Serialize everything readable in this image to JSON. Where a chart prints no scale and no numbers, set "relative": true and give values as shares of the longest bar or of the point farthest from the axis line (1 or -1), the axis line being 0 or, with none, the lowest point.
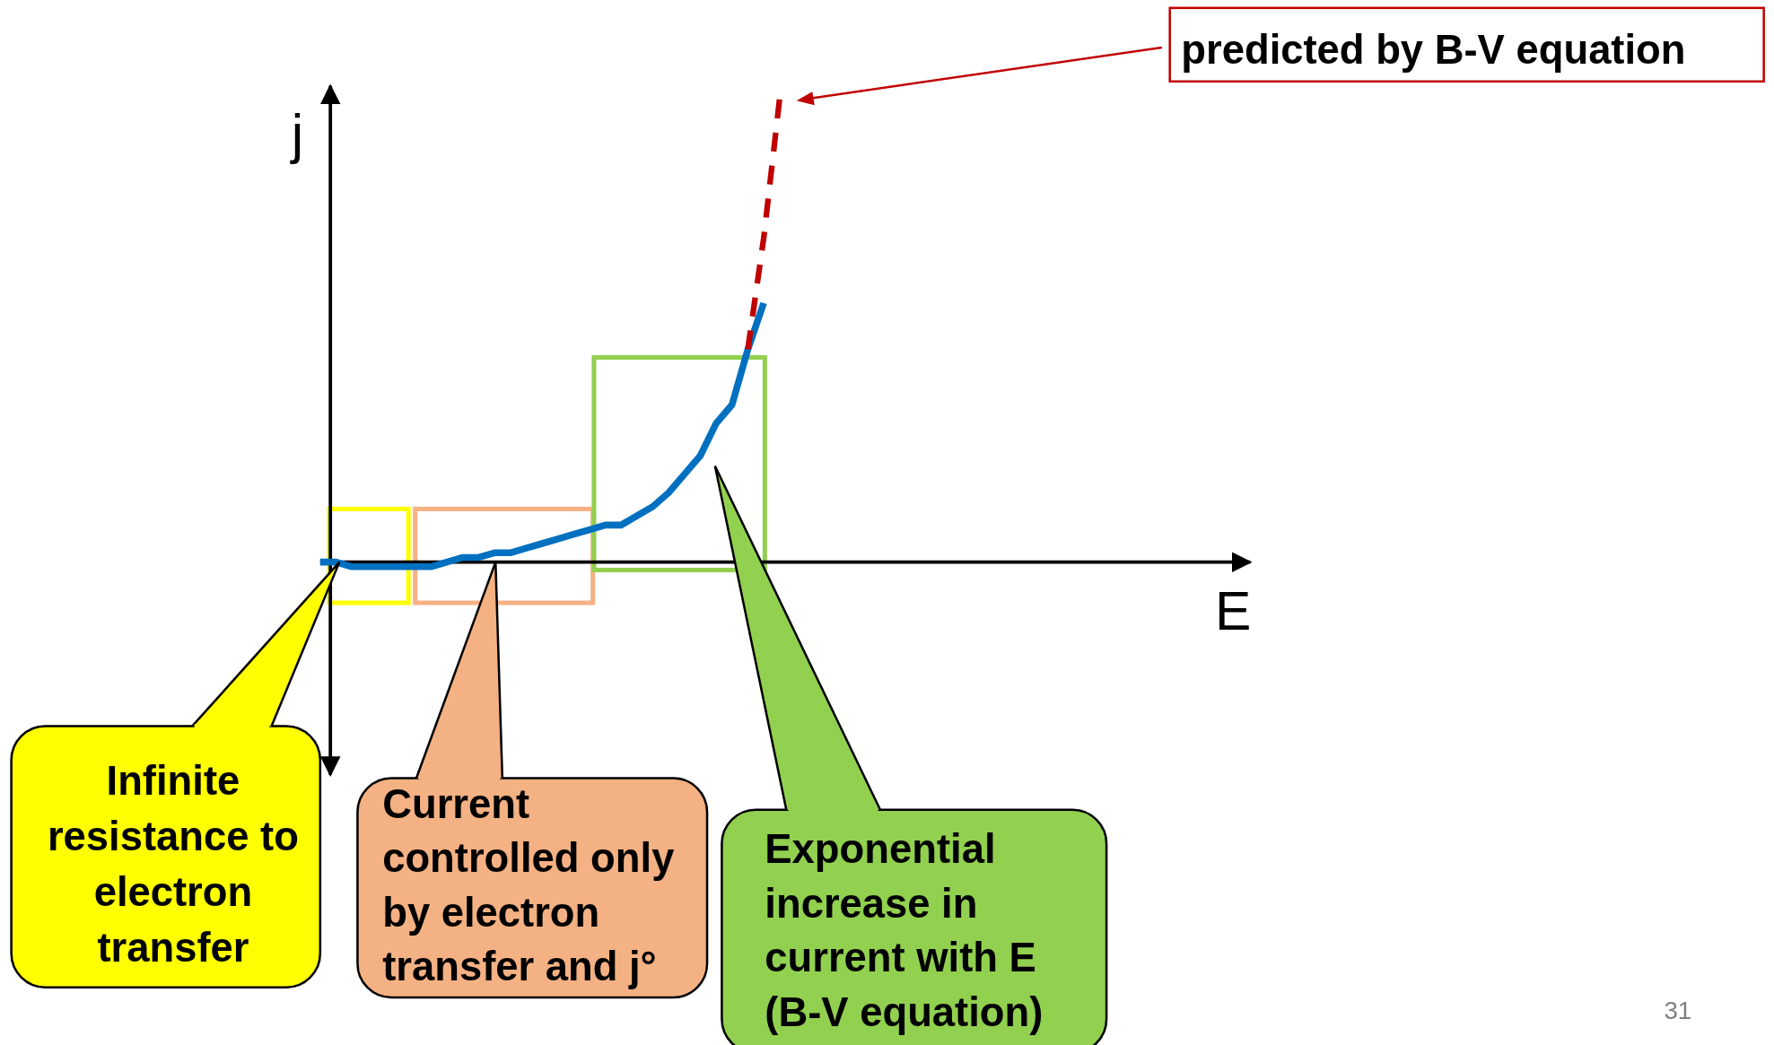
{
  "chart_data": {
    "type": "line",
    "relative": true,
    "xlabel": "E",
    "ylabel": "j",
    "categories": [
      null,
      null,
      null,
      null,
      null,
      null,
      null,
      null,
      null,
      null,
      null,
      null,
      null,
      null,
      null,
      null,
      null,
      null,
      null,
      null,
      null,
      null,
      null,
      null,
      null,
      null,
      null,
      null,
      null,
      null,
      null,
      null,
      null,
      null,
      null,
      null,
      null,
      null,
      null,
      null,
      null,
      null,
      null,
      null,
      null,
      null,
      null,
      null,
      null,
      null,
      null,
      null,
      null,
      null,
      null,
      null,
      null,
      null,
      null
    ],
    "series": [
      {
        "color": "#0070c0",
        "line_style": "solid",
        "values": [
          0.0,
          0.0,
          -0.01,
          -0.01,
          -0.01,
          -0.01,
          -0.01,
          -0.01,
          0,
          0.01,
          0.01,
          0.02,
          0.02,
          0.03,
          0.04,
          0.05,
          0.06,
          0.07,
          0.08,
          0.08,
          0.1,
          0.12,
          0.15,
          0.19,
          0.23,
          0.3,
          0.34,
          0.46,
          0.56,
          null,
          null,
          null,
          null,
          null,
          null,
          null,
          null,
          null,
          null,
          null,
          null,
          null,
          null,
          null,
          null,
          null,
          null,
          null,
          null,
          null,
          null,
          null,
          null,
          null,
          null,
          null,
          null,
          null,
          null
        ]
      },
      {
        "color": "#c00000",
        "line_style": "dashed",
        "values": [
          null,
          null,
          null,
          null,
          null,
          null,
          null,
          null,
          null,
          null,
          null,
          null,
          null,
          null,
          null,
          null,
          null,
          null,
          null,
          null,
          null,
          null,
          null,
          null,
          null,
          null,
          null,
          0.46,
          0.7,
          1,
          null,
          null,
          null,
          null,
          null,
          null,
          null,
          null,
          null,
          null,
          null,
          null,
          null,
          null,
          null,
          null,
          null,
          null,
          null,
          null,
          null,
          null,
          null,
          null,
          null,
          null,
          null,
          null,
          null
        ]
      }
    ],
    "annotations": [
      "predicted by B-V equation",
      "Infinite\nresistance to\nelectron\ntransfer",
      "Current\ncontrolled only\nby electron\ntransfer and j°",
      "Exponential\nincrease in\ncurrent with E\n(B-V equation)",
      "31"
    ]
  }
}
